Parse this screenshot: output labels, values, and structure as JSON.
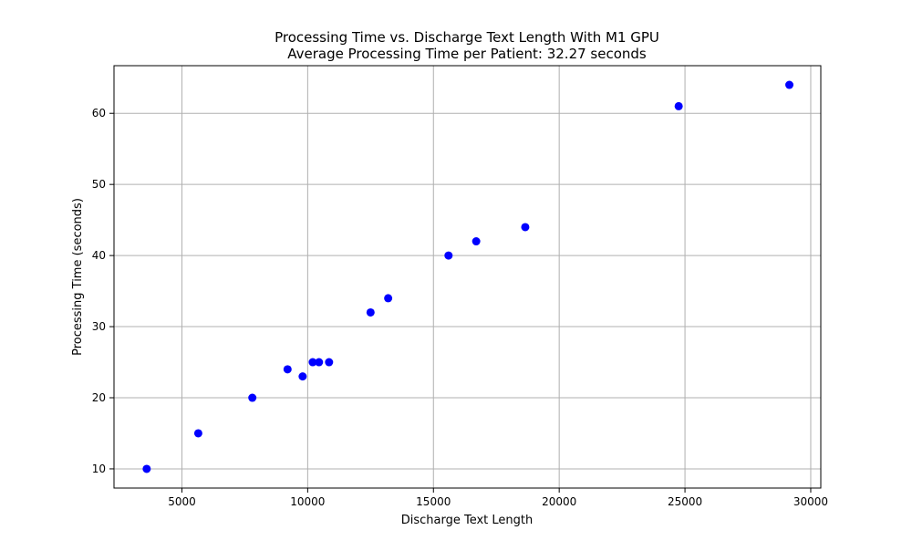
{
  "chart_data": {
    "type": "scatter",
    "title": "Processing Time vs. Discharge Text Length With M1 GPU",
    "subtitle": "Average Processing Time per Patient: 32.27 seconds",
    "xlabel": "Discharge Text Length",
    "ylabel": "Processing Time (seconds)",
    "xlim": [
      2300,
      30400
    ],
    "ylim": [
      7.3,
      66.7
    ],
    "xticks": [
      5000,
      10000,
      15000,
      20000,
      25000,
      30000
    ],
    "yticks": [
      10,
      20,
      30,
      40,
      50,
      60
    ],
    "grid": true,
    "point_color": "#0000ff",
    "points": [
      {
        "x": 3600,
        "y": 10
      },
      {
        "x": 5650,
        "y": 15
      },
      {
        "x": 7800,
        "y": 20
      },
      {
        "x": 9200,
        "y": 24
      },
      {
        "x": 9800,
        "y": 23
      },
      {
        "x": 10200,
        "y": 25
      },
      {
        "x": 10450,
        "y": 25
      },
      {
        "x": 10850,
        "y": 25
      },
      {
        "x": 12500,
        "y": 32
      },
      {
        "x": 13200,
        "y": 34
      },
      {
        "x": 15600,
        "y": 40
      },
      {
        "x": 16700,
        "y": 42
      },
      {
        "x": 18650,
        "y": 44
      },
      {
        "x": 24750,
        "y": 61
      },
      {
        "x": 29150,
        "y": 64
      }
    ]
  }
}
